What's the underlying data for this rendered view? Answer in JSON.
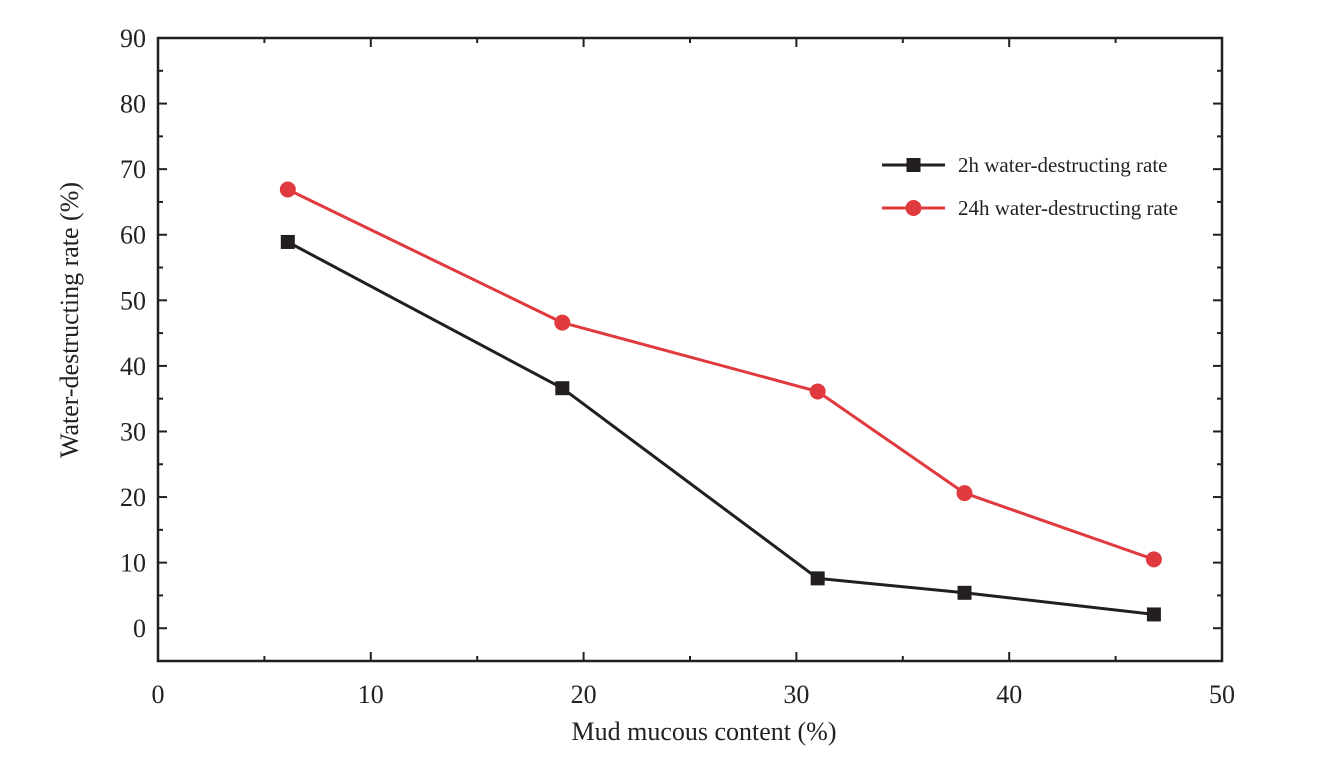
{
  "chart_data": {
    "type": "line",
    "title": "",
    "xlabel": "Mud mucous content (%)",
    "ylabel": "Water-destructing rate (%)",
    "xlim": [
      0,
      50
    ],
    "ylim": [
      -5,
      90
    ],
    "x_ticks": [
      0,
      10,
      20,
      30,
      40,
      50
    ],
    "y_ticks": [
      0,
      10,
      20,
      30,
      40,
      50,
      60,
      70,
      80,
      90
    ],
    "grid": false,
    "legend_position": "top-right",
    "series": [
      {
        "name": "2h water-destructing rate",
        "marker": "square",
        "color": "#231f20",
        "x": [
          6.1,
          19.0,
          31.0,
          37.9,
          46.8
        ],
        "y": [
          58.9,
          36.6,
          7.6,
          5.4,
          2.1
        ]
      },
      {
        "name": "24h water-destructing rate",
        "marker": "circle",
        "color": "#e03a3e",
        "x": [
          6.1,
          19.0,
          31.0,
          37.9,
          46.8
        ],
        "y": [
          66.9,
          46.6,
          36.1,
          20.6,
          10.5
        ]
      }
    ]
  }
}
